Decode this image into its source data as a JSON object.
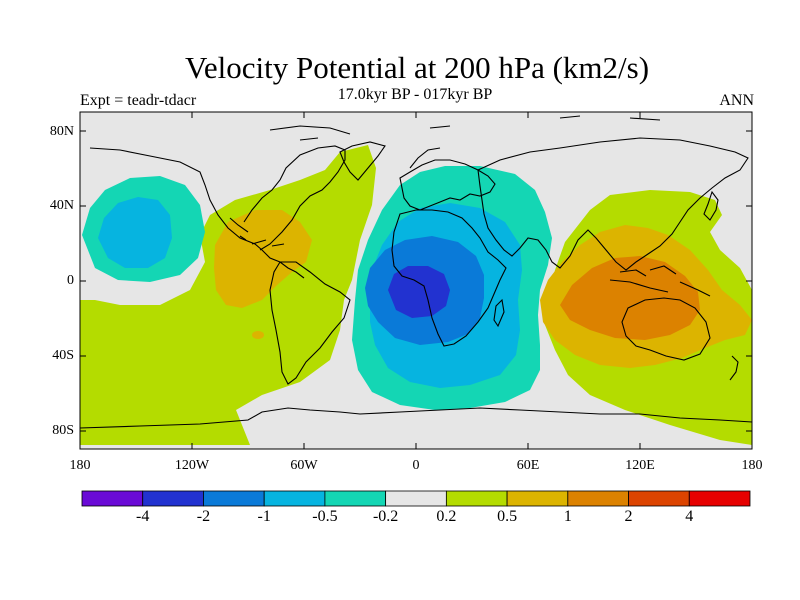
{
  "title": "Velocity Potential at 200 hPa (km2/s)",
  "subtitle": "17.0kyr BP - 017kyr BP",
  "experiment": "Expt = teadr-tdacr",
  "season": "ANN",
  "axes": {
    "y_ticks": [
      "80N",
      "40N",
      "0",
      "40S",
      "80S"
    ],
    "x_ticks": [
      "180",
      "120W",
      "60W",
      "0",
      "60E",
      "120E",
      "180"
    ]
  },
  "colorbar": {
    "colors": [
      "#6a0ad6",
      "#2232d0",
      "#0a7ad8",
      "#06b4e0",
      "#14d6b4",
      "#e6e6e6",
      "#b4dc00",
      "#dcb400",
      "#dc8200",
      "#dc4400",
      "#e60000"
    ],
    "labels": [
      "-4",
      "-2",
      "-1",
      "-0.5",
      "-0.2",
      "0.2",
      "0.5",
      "1",
      "2",
      "4"
    ]
  }
}
